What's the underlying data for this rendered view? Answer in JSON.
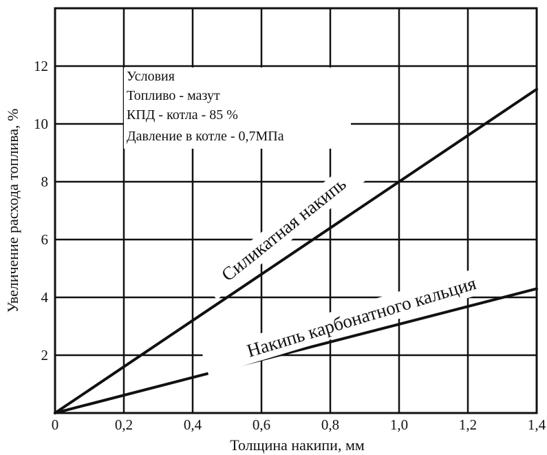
{
  "chart_data": {
    "type": "line",
    "title": "",
    "xlabel": "Толщина накипи, мм",
    "ylabel": "Увеличение расхода топлива, %",
    "xlim": [
      0,
      1.4
    ],
    "ylim": [
      0,
      14
    ],
    "x_ticks": [
      {
        "value": 0,
        "label": "0"
      },
      {
        "value": 0.2,
        "label": "0,2"
      },
      {
        "value": 0.4,
        "label": "0,4"
      },
      {
        "value": 0.6,
        "label": "0,6"
      },
      {
        "value": 0.8,
        "label": "0,8"
      },
      {
        "value": 1.0,
        "label": "1,0"
      },
      {
        "value": 1.2,
        "label": "1,2"
      },
      {
        "value": 1.4,
        "label": "1,4"
      }
    ],
    "y_ticks": [
      {
        "value": 2,
        "label": "2"
      },
      {
        "value": 4,
        "label": "4"
      },
      {
        "value": 6,
        "label": "6"
      },
      {
        "value": 8,
        "label": "8"
      },
      {
        "value": 10,
        "label": "10"
      },
      {
        "value": 12,
        "label": "12"
      }
    ],
    "grid": true,
    "series": [
      {
        "name": "Силикатная накипь",
        "x": [
          0,
          1.4
        ],
        "y": [
          0,
          11.2
        ]
      },
      {
        "name": "Накипь карбонатного кальция",
        "x": [
          0,
          1.4
        ],
        "y": [
          0,
          4.3
        ]
      }
    ],
    "annotations": [
      "Условия",
      "Топливо - мазут",
      "КПД - котла - 85 %",
      "Давление в котле - 0,7МПа"
    ]
  }
}
